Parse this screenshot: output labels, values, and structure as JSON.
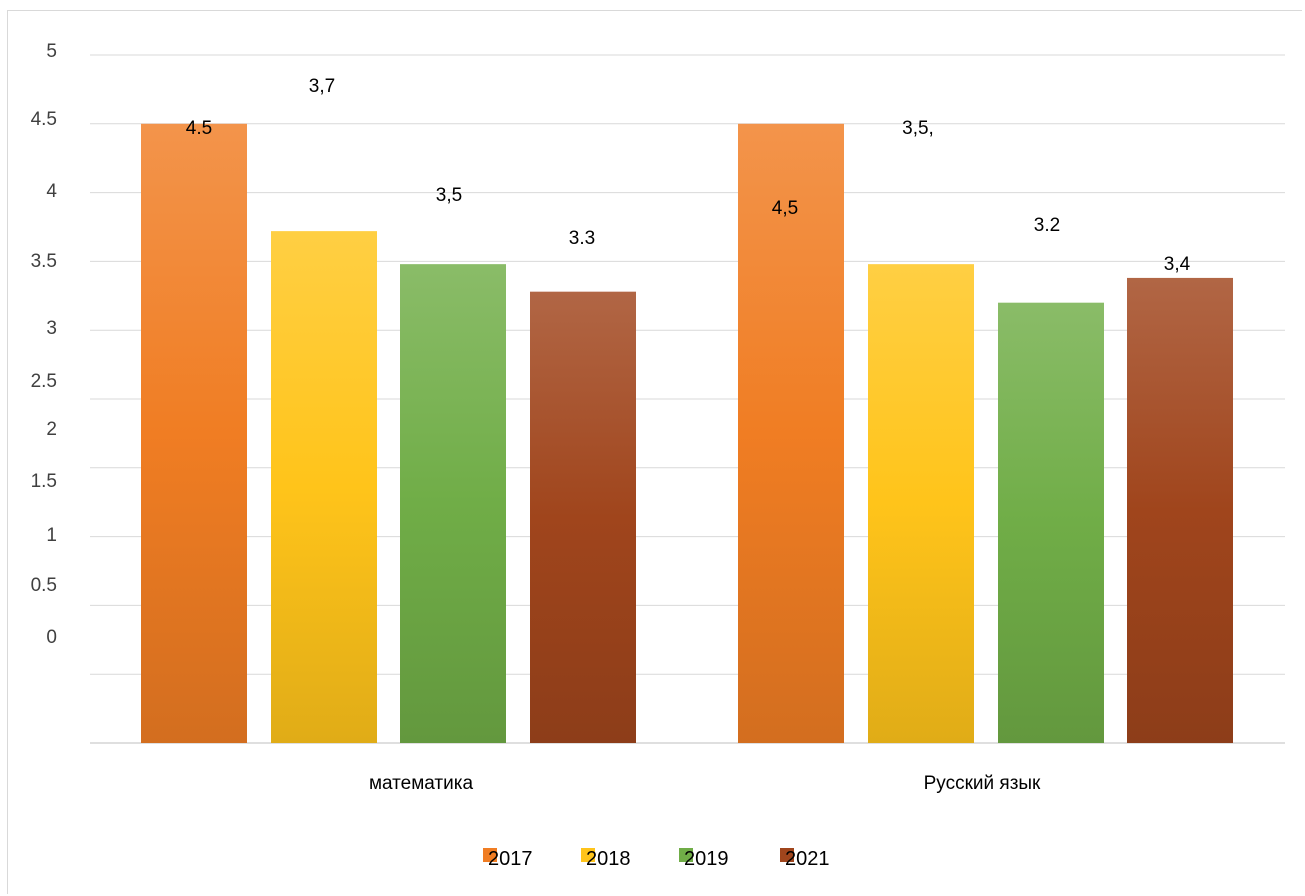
{
  "chart_data": {
    "type": "bar",
    "categories": [
      "математика",
      "Русский язык"
    ],
    "series": [
      {
        "name": "2017",
        "values": [
          4.5,
          4.5
        ],
        "color": "#f07d23",
        "labels": [
          "4.5",
          "4,5"
        ]
      },
      {
        "name": "2018",
        "values": [
          3.72,
          3.48
        ],
        "color": "#ffc41a",
        "labels": [
          "3,7",
          "3,5,"
        ]
      },
      {
        "name": "2019",
        "values": [
          3.48,
          3.2
        ],
        "color": "#70ad47",
        "labels": [
          "3,5",
          "3.2"
        ]
      },
      {
        "name": "2021",
        "values": [
          3.28,
          3.38
        ],
        "color": "#a0451c",
        "labels": [
          "3.3",
          "3,4"
        ]
      }
    ],
    "y_tick_labels": [
      "5",
      "4.5",
      "4",
      "3.5",
      "3",
      "2.5",
      "2",
      "1.5",
      "1",
      "0.5",
      "0"
    ],
    "ylim": [
      0,
      5
    ],
    "grid": true,
    "legend_position": "bottom",
    "title": "",
    "xlabel": "",
    "ylabel": ""
  }
}
